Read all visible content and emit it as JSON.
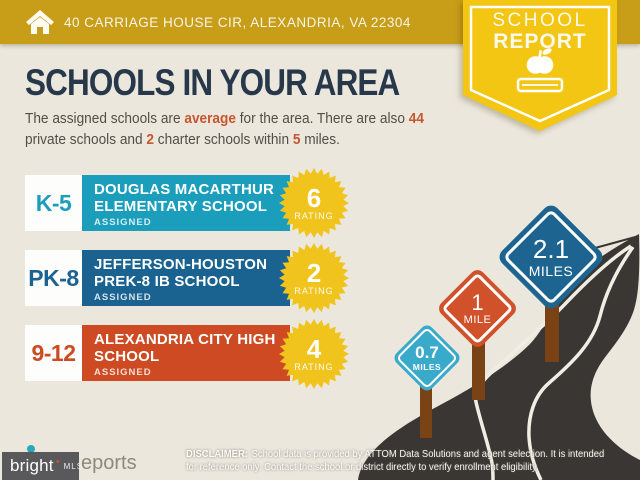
{
  "header": {
    "address": "40 CARRIAGE HOUSE CIR, ALEXANDRIA, VA 22304"
  },
  "badge": {
    "line1": "SCHOOL",
    "line2": "REPORT"
  },
  "intro": {
    "title": "SCHOOLS IN YOUR AREA",
    "l1s1": "The assigned schools are ",
    "l1h1": "average",
    "l1s2": " for the area. There are also ",
    "l1h2": "44",
    "l2s1": "private schools and ",
    "l2h1": "2",
    "l2s2": " charter schools within ",
    "l2h2": "5",
    "l2s3": " miles."
  },
  "schools": [
    {
      "grades": "K-5",
      "name_line1": "DOUGLAS MACARTHUR",
      "name_line2": "ELEMENTARY SCHOOL",
      "status": "ASSIGNED",
      "rating": "6",
      "rating_label": "RATING",
      "color": "#1A9EBC"
    },
    {
      "grades": "PK-8",
      "name_line1": "JEFFERSON-HOUSTON",
      "name_line2": "PREK-8 IB SCHOOL",
      "status": "ASSIGNED",
      "rating": "2",
      "rating_label": "RATING",
      "color": "#1A6290"
    },
    {
      "grades": "9-12",
      "name_line1": "ALEXANDRIA CITY HIGH",
      "name_line2": "SCHOOL",
      "status": "ASSIGNED",
      "rating": "4",
      "rating_label": "RATING",
      "color": "#CE4A22"
    }
  ],
  "mile_markers": [
    {
      "distance": "0.7",
      "unit": "MILES",
      "color": "#3AAACB"
    },
    {
      "distance": "1",
      "unit": "MILE",
      "color": "#D1512B"
    },
    {
      "distance": "2.1",
      "unit": "MILES",
      "color": "#1E6491"
    }
  ],
  "footer": {
    "disclaimer_label": "DISCLAIMER:",
    "disclaimer_line1": "School data is provided by ATTOM Data Solutions and agent selection. It is intended",
    "disclaimer_line2": "for reference only. Contact the school or district directly to verify enrollment eligibility.",
    "logo_main": "bright",
    "logo_sub": "MLS",
    "partial_logo_text": "eports"
  },
  "colors": {
    "top_bar_gold": "#C89D18",
    "badge_yellow": "#F2C613",
    "background_cream": "#EBE7DD",
    "title_navy": "#26384A",
    "accent_orange": "#C7552F",
    "burst_yellow": "#F0C41D",
    "road_charcoal": "#3A3633",
    "post_brown": "#7A4315"
  }
}
